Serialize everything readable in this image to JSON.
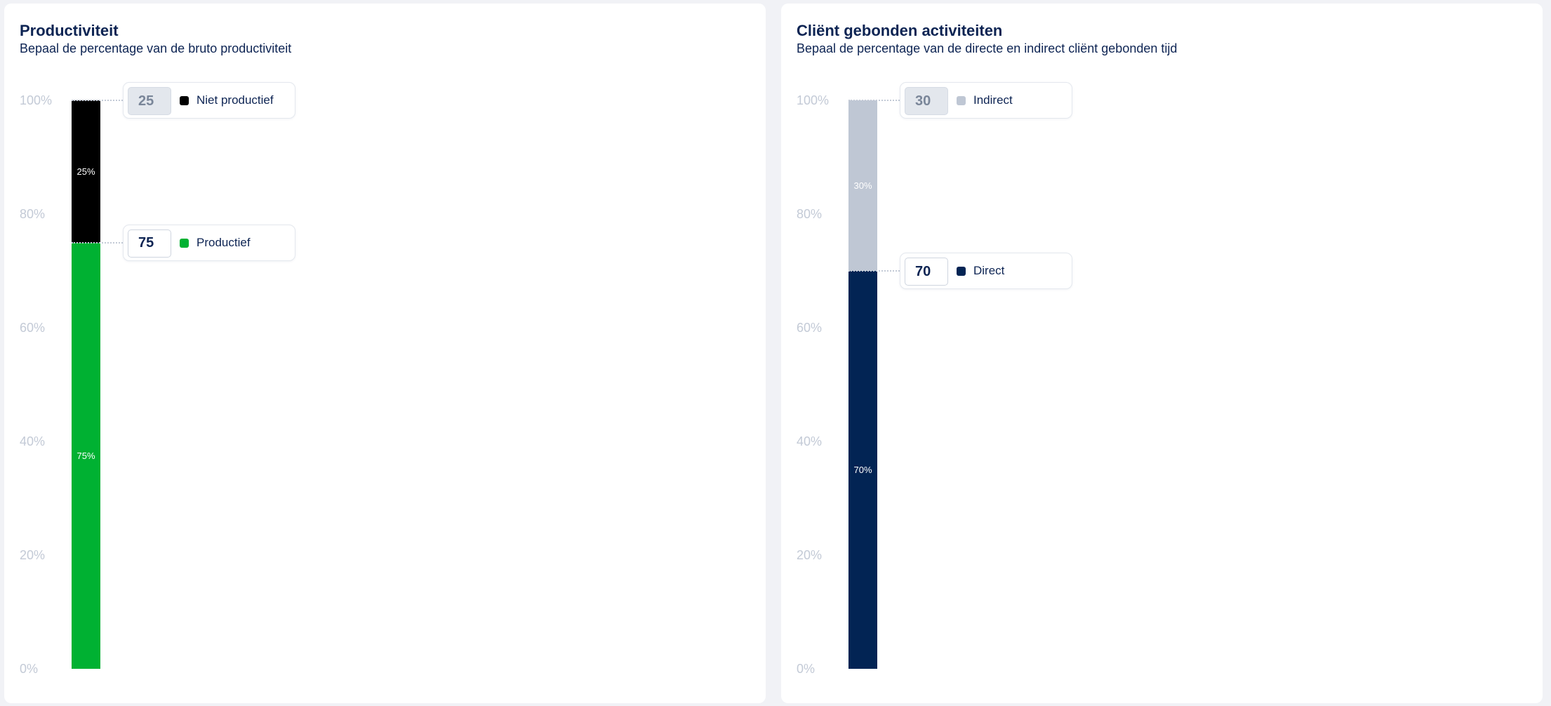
{
  "panels": [
    {
      "title": "Productiviteit",
      "subtitle": "Bepaal de percentage van de bruto productiviteit",
      "colors": {
        "bottom": "#00b132",
        "top": "#000000"
      },
      "chart_data": {
        "type": "bar",
        "stacked": true,
        "ylim": [
          0,
          100
        ],
        "y_ticks": [
          "0%",
          "20%",
          "40%",
          "60%",
          "80%",
          "100%"
        ],
        "series": [
          {
            "name": "Productief",
            "value": 75,
            "label": "75%",
            "color": "#00b132",
            "editable": true
          },
          {
            "name": "Niet productief",
            "value": 25,
            "label": "25%",
            "color": "#000000",
            "editable": false
          }
        ]
      }
    },
    {
      "title": "Cliënt gebonden activiteiten",
      "subtitle": "Bepaal de percentage van de directe en indirect cliënt gebonden tijd",
      "colors": {
        "bottom": "#022454",
        "top": "#bfc7d4"
      },
      "chart_data": {
        "type": "bar",
        "stacked": true,
        "ylim": [
          0,
          100
        ],
        "y_ticks": [
          "0%",
          "20%",
          "40%",
          "60%",
          "80%",
          "100%"
        ],
        "series": [
          {
            "name": "Direct",
            "value": 70,
            "label": "70%",
            "color": "#022454",
            "editable": true
          },
          {
            "name": "Indirect",
            "value": 30,
            "label": "30%",
            "color": "#bfc7d4",
            "editable": false
          }
        ]
      }
    }
  ]
}
